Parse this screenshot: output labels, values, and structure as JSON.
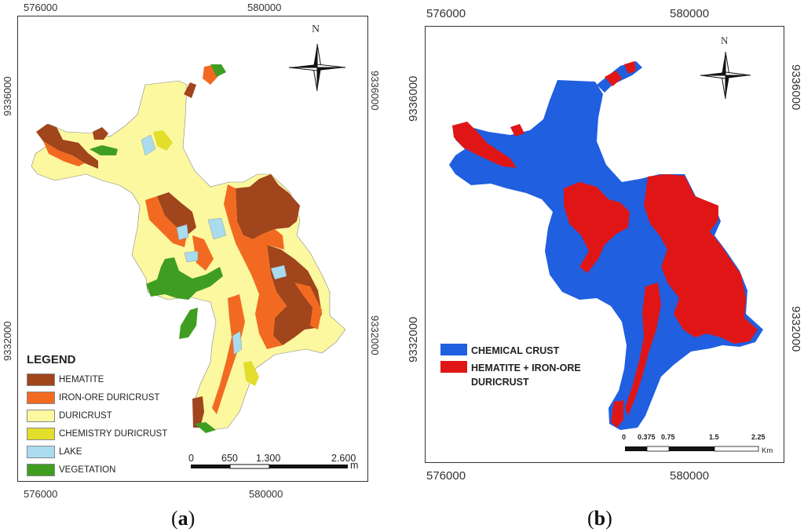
{
  "panel_a": {
    "caption": "a",
    "x_ticks": [
      "576000",
      "580000"
    ],
    "y_ticks": [
      "9336000",
      "9332000"
    ],
    "north_label": "N",
    "legend_title": "LEGEND",
    "legend": [
      {
        "label": "HEMATITE",
        "color": "#a0451c"
      },
      {
        "label": "IRON-ORE DURICRUST",
        "color": "#f26a21"
      },
      {
        "label": "DURICRUST",
        "color": "#fbf8a0"
      },
      {
        "label": "CHEMISTRY DURICRUST",
        "color": "#e3dd2c"
      },
      {
        "label": "LAKE",
        "color": "#a9dcef"
      },
      {
        "label": "VEGETATION",
        "color": "#3f9e22"
      }
    ],
    "scale": {
      "labels": [
        "0",
        "650",
        "1.300",
        "2.600"
      ],
      "unit": "m"
    }
  },
  "panel_b": {
    "caption": "b",
    "x_ticks": [
      "576000",
      "580000"
    ],
    "y_ticks": [
      "9336000",
      "9332000"
    ],
    "north_label": "N",
    "legend": [
      {
        "label": "CHEMICAL CRUST",
        "color": "#1f5fe0"
      },
      {
        "label": "HEMATITE + IRON-ORE DURICRUST",
        "color": "#e01616"
      }
    ],
    "scale": {
      "labels": [
        "0",
        "0.375",
        "0.75",
        "1.5",
        "2.25"
      ],
      "unit": "Km"
    }
  }
}
